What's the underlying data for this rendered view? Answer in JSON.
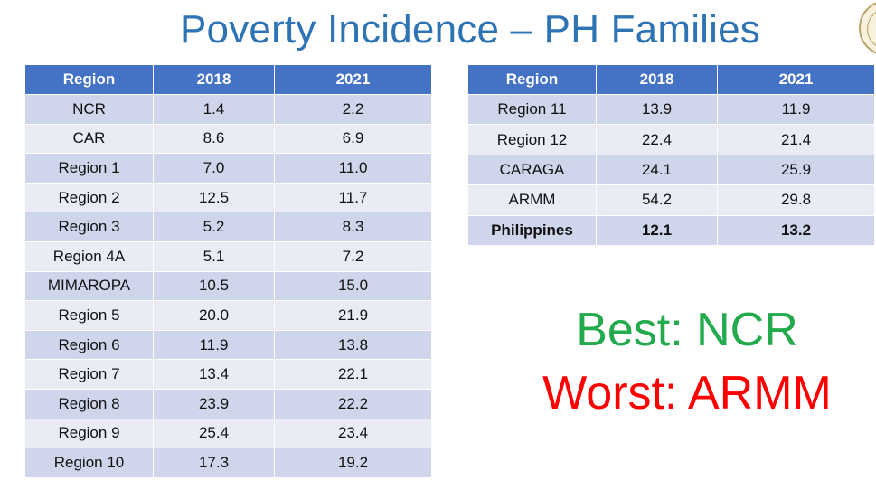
{
  "title": "Poverty Incidence – PH Families",
  "columns": [
    "Region",
    "2018",
    "2021"
  ],
  "left_rows": [
    {
      "region": "NCR",
      "y2018": "1.4",
      "y2021": "2.2"
    },
    {
      "region": "CAR",
      "y2018": "8.6",
      "y2021": "6.9"
    },
    {
      "region": "Region 1",
      "y2018": "7.0",
      "y2021": "11.0"
    },
    {
      "region": "Region 2",
      "y2018": "12.5",
      "y2021": "11.7"
    },
    {
      "region": "Region 3",
      "y2018": "5.2",
      "y2021": "8.3"
    },
    {
      "region": "Region 4A",
      "y2018": "5.1",
      "y2021": "7.2"
    },
    {
      "region": "MIMAROPA",
      "y2018": "10.5",
      "y2021": "15.0"
    },
    {
      "region": "Region 5",
      "y2018": "20.0",
      "y2021": "21.9"
    },
    {
      "region": "Region 6",
      "y2018": "11.9",
      "y2021": "13.8"
    },
    {
      "region": "Region 7",
      "y2018": "13.4",
      "y2021": "22.1"
    },
    {
      "region": "Region 8",
      "y2018": "23.9",
      "y2021": "22.2"
    },
    {
      "region": "Region 9",
      "y2018": "25.4",
      "y2021": "23.4"
    },
    {
      "region": "Region 10",
      "y2018": "17.3",
      "y2021": "19.2"
    }
  ],
  "right_rows": [
    {
      "region": "Region 11",
      "y2018": "13.9",
      "y2021": "11.9"
    },
    {
      "region": "Region 12",
      "y2018": "22.4",
      "y2021": "21.4"
    },
    {
      "region": "CARAGA",
      "y2018": "24.1",
      "y2021": "25.9"
    },
    {
      "region": "ARMM",
      "y2018": "54.2",
      "y2021": "29.8"
    },
    {
      "region": "Philippines",
      "y2018": "12.1",
      "y2021": "13.2",
      "bold": true
    }
  ],
  "best_text": "Best: NCR",
  "worst_text": "Worst: ARMM",
  "colors": {
    "title": "#2E74B5",
    "header": "#4472C4",
    "row_odd": "#CFD5EA",
    "row_even": "#E9EBF5",
    "best": "#22AA4C",
    "worst": "#FF0000"
  },
  "logo": "seal-logo"
}
